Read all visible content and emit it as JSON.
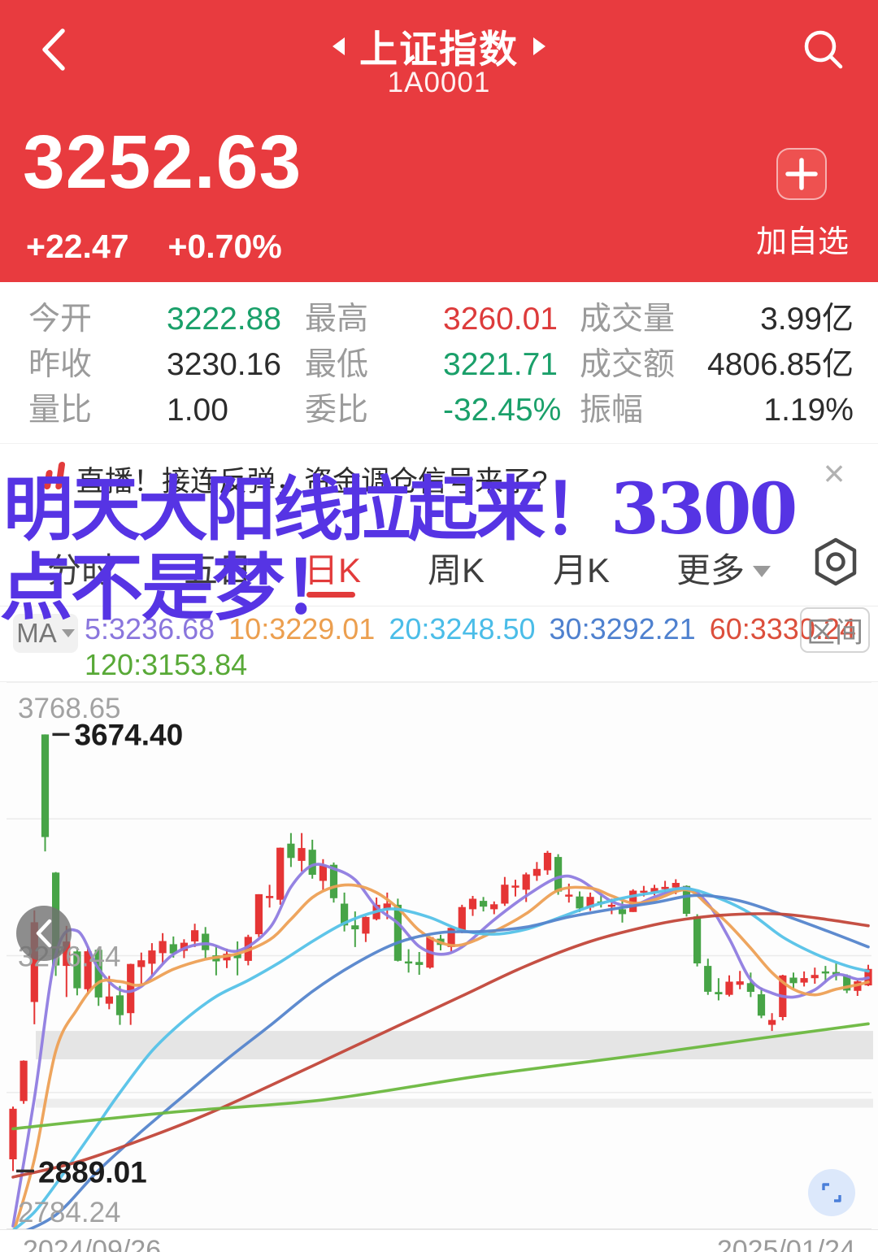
{
  "header": {
    "title": "上证指数",
    "code": "1A0001",
    "price": "3252.63",
    "change": "+22.47",
    "change_pct": "+0.70%",
    "add_watchlist_label": "加自选",
    "bg_color": "#e83b3f"
  },
  "stats": {
    "rows": [
      [
        {
          "label": "今开",
          "value": "3222.88",
          "color": "green"
        },
        {
          "label": "最高",
          "value": "3260.01",
          "color": "red"
        },
        {
          "label": "成交量",
          "value": "3.99亿",
          "color": "dark"
        }
      ],
      [
        {
          "label": "昨收",
          "value": "3230.16",
          "color": "dark"
        },
        {
          "label": "最低",
          "value": "3221.71",
          "color": "green"
        },
        {
          "label": "成交额",
          "value": "4806.85亿",
          "color": "dark"
        }
      ],
      [
        {
          "label": "量比",
          "value": "1.00",
          "color": "dark"
        },
        {
          "label": "委比",
          "value": "-32.45%",
          "color": "green"
        },
        {
          "label": "振幅",
          "value": "1.19%",
          "color": "dark"
        }
      ]
    ]
  },
  "banner": {
    "text": "直播！接连反弹，资金调仓信号来了?",
    "close_glyph": "×"
  },
  "overlay": {
    "line1": "明天大阳线拉起来！3300",
    "line2": "点不是梦！",
    "color": "#5634e4"
  },
  "tabs": {
    "items": [
      {
        "label": "分时",
        "active": false
      },
      {
        "label": "五日",
        "active": false
      },
      {
        "label": "日K",
        "active": true
      },
      {
        "label": "周K",
        "active": false
      },
      {
        "label": "月K",
        "active": false
      },
      {
        "label": "更多",
        "active": false,
        "dropdown": true
      }
    ]
  },
  "indicator": {
    "name": "MA",
    "values_line1": [
      {
        "text": "5:3236.68",
        "color": "#8a76dd"
      },
      {
        "text": "10:3229.01",
        "color": "#ec9f4f"
      },
      {
        "text": "20:3248.50",
        "color": "#4bbde8"
      },
      {
        "text": "30:3292.21",
        "color": "#4f81cf"
      },
      {
        "text": "60:3330.24",
        "color": "#dc4f3c"
      }
    ],
    "values_line2": [
      {
        "text": "120:3153.84",
        "color": "#58a937"
      }
    ],
    "range_button_label": "区间"
  },
  "icons": [
    "back-icon",
    "search-icon",
    "plus-icon",
    "live-icon",
    "close-icon",
    "chevron-down-icon",
    "kline-settings-icon",
    "chevron-left-icon",
    "expand-icon"
  ],
  "chart_data": {
    "type": "candlestick",
    "title": "上证指数 日K",
    "x_axis": {
      "start_label": "2024/09/26",
      "end_label": "2025/01/24"
    },
    "y_axis": {
      "max": 3768.65,
      "min": 2784.24,
      "labels": [
        "3768.65",
        "3276.44",
        "2784.24"
      ],
      "gridline_values": [
        3768.65,
        3522.55,
        3276.44,
        3030.34,
        2784.24
      ]
    },
    "markers": {
      "high": {
        "label": "3674.40",
        "value": 3674.4,
        "index": 3
      },
      "low": {
        "label": "2889.01",
        "value": 2889.01,
        "index": 0
      }
    },
    "zones": [
      {
        "from": 3141,
        "to": 3090
      },
      {
        "from": 3019,
        "to": 3003
      }
    ],
    "colors": {
      "up": "#e53535",
      "down": "#47a447"
    },
    "candles": [
      [
        2910,
        3005,
        2889.01,
        3000.95
      ],
      [
        3015,
        3088,
        3010,
        3087.53
      ],
      [
        3193,
        3358,
        3153,
        3336.5
      ],
      [
        3674.4,
        3674.4,
        3464,
        3489.78
      ],
      [
        3426,
        3427,
        3240,
        3258.86
      ],
      [
        3258,
        3330,
        3202,
        3301.93
      ],
      [
        3284,
        3292,
        3205,
        3217.74
      ],
      [
        3216,
        3293,
        3207,
        3284.32
      ],
      [
        3287,
        3288,
        3186,
        3201.29
      ],
      [
        3190,
        3240,
        3180,
        3202.95
      ],
      [
        3205,
        3222,
        3152,
        3169.38
      ],
      [
        3173,
        3262,
        3152,
        3261.56
      ],
      [
        3256,
        3282,
        3226,
        3268.11
      ],
      [
        3262,
        3299,
        3240,
        3285.87
      ],
      [
        3281,
        3317,
        3261,
        3302.8
      ],
      [
        3297,
        3311,
        3273,
        3280.26
      ],
      [
        3285,
        3306,
        3272,
        3299.7
      ],
      [
        3302,
        3334,
        3292,
        3322.2
      ],
      [
        3316,
        3328,
        3272,
        3286.41
      ],
      [
        3277,
        3296,
        3241,
        3266.24
      ],
      [
        3268,
        3289,
        3254,
        3279.82
      ],
      [
        3280,
        3302,
        3241,
        3272.01
      ],
      [
        3267,
        3314,
        3259,
        3310.21
      ],
      [
        3315,
        3387,
        3310,
        3386.99
      ],
      [
        3380,
        3404,
        3363,
        3383.81
      ],
      [
        3377,
        3471,
        3368,
        3470.66
      ],
      [
        3478,
        3497,
        3436,
        3452.3
      ],
      [
        3447,
        3497,
        3428,
        3470.07
      ],
      [
        3467,
        3485,
        3415,
        3421.97
      ],
      [
        3411,
        3450,
        3394,
        3439.28
      ],
      [
        3440,
        3444,
        3372,
        3379.84
      ],
      [
        3370,
        3390,
        3320,
        3330.73
      ],
      [
        3331,
        3356,
        3292,
        3323.85
      ],
      [
        3316,
        3347,
        3301,
        3346.01
      ],
      [
        3342,
        3381,
        3340,
        3367.99
      ],
      [
        3360,
        3390,
        3342,
        3370.4
      ],
      [
        3368,
        3379,
        3266,
        3267.19
      ],
      [
        3266,
        3288,
        3246,
        3263.76
      ],
      [
        3265,
        3283,
        3242,
        3259.76
      ],
      [
        3255,
        3311,
        3253,
        3309.78
      ],
      [
        3307,
        3314,
        3286,
        3295.7
      ],
      [
        3292,
        3327,
        3284,
        3326.46
      ],
      [
        3322,
        3368,
        3317,
        3363.98
      ],
      [
        3360,
        3384,
        3348,
        3378.81
      ],
      [
        3375,
        3382,
        3356,
        3364.65
      ],
      [
        3360,
        3374,
        3351,
        3368.86
      ],
      [
        3370,
        3418,
        3366,
        3404.08
      ],
      [
        3400,
        3413,
        3383,
        3402.53
      ],
      [
        3395,
        3426,
        3373,
        3422.66
      ],
      [
        3420,
        3445,
        3411,
        3432.49
      ],
      [
        3430,
        3465,
        3422,
        3461.5
      ],
      [
        3454,
        3459,
        3386,
        3391.88
      ],
      [
        3385,
        3406,
        3372,
        3386.33
      ],
      [
        3383,
        3392,
        3355,
        3361.49
      ],
      [
        3363,
        3390,
        3357,
        3382.21
      ],
      [
        3374,
        3387,
        3363,
        3370.03
      ],
      [
        3365,
        3379,
        3351,
        3368.07
      ],
      [
        3360,
        3376,
        3336,
        3351.26
      ],
      [
        3355,
        3396,
        3355,
        3393.53
      ],
      [
        3391,
        3402,
        3383,
        3393.36
      ],
      [
        3391,
        3404,
        3385,
        3398.08
      ],
      [
        3396,
        3411,
        3390,
        3400.14
      ],
      [
        3399,
        3414,
        3387,
        3407.33
      ],
      [
        3402,
        3403,
        3347,
        3351.76
      ],
      [
        3347,
        3351,
        3257,
        3262.56
      ],
      [
        3258,
        3271,
        3206,
        3211.43
      ],
      [
        3211,
        3236,
        3196,
        3206.92
      ],
      [
        3206,
        3241,
        3203,
        3229.64
      ],
      [
        3224,
        3249,
        3216,
        3230.17
      ],
      [
        3227,
        3246,
        3202,
        3211.39
      ],
      [
        3207,
        3219,
        3164,
        3168.52
      ],
      [
        3152,
        3173,
        3141,
        3160.76
      ],
      [
        3166,
        3242,
        3160,
        3240.94
      ],
      [
        3237,
        3246,
        3217,
        3227.12
      ],
      [
        3228,
        3248,
        3221,
        3236.03
      ],
      [
        3236,
        3255,
        3226,
        3241.82
      ],
      [
        3248,
        3258,
        3229,
        3244.38
      ],
      [
        3247,
        3263,
        3232,
        3242.62
      ],
      [
        3241,
        3243,
        3209,
        3213.62
      ],
      [
        3213,
        3232,
        3204,
        3230.16
      ],
      [
        3222.88,
        3260.01,
        3221.71,
        3252.63
      ]
    ],
    "ma_series": [
      {
        "name": "MA5",
        "color": "#8f7ce0",
        "points": [
          [
            0,
            2790
          ],
          [
            2,
            3020
          ],
          [
            4,
            3278
          ],
          [
            6,
            3321
          ],
          [
            8,
            3253
          ],
          [
            10,
            3215
          ],
          [
            12,
            3221
          ],
          [
            15,
            3279
          ],
          [
            18,
            3298
          ],
          [
            21,
            3285
          ],
          [
            24,
            3326
          ],
          [
            26,
            3400
          ],
          [
            28,
            3439
          ],
          [
            30,
            3433
          ],
          [
            32,
            3413
          ],
          [
            34,
            3364
          ],
          [
            36,
            3335
          ],
          [
            38,
            3293
          ],
          [
            40,
            3279
          ],
          [
            42,
            3292
          ],
          [
            45,
            3341
          ],
          [
            48,
            3384
          ],
          [
            51,
            3417
          ],
          [
            53,
            3413
          ],
          [
            56,
            3374
          ],
          [
            58,
            3367
          ],
          [
            60,
            3382
          ],
          [
            63,
            3398
          ],
          [
            65,
            3370
          ],
          [
            67,
            3307
          ],
          [
            69,
            3233
          ],
          [
            71,
            3209
          ],
          [
            73,
            3202
          ],
          [
            75,
            3215
          ],
          [
            77,
            3242
          ],
          [
            79,
            3234
          ],
          [
            80,
            3236.68
          ]
        ]
      },
      {
        "name": "MA10",
        "color": "#eda055",
        "points": [
          [
            0,
            2775
          ],
          [
            2,
            2910
          ],
          [
            4,
            3105
          ],
          [
            6,
            3180
          ],
          [
            8,
            3228
          ],
          [
            10,
            3230
          ],
          [
            12,
            3224
          ],
          [
            15,
            3252
          ],
          [
            18,
            3270
          ],
          [
            21,
            3280
          ],
          [
            24,
            3305
          ],
          [
            26,
            3342
          ],
          [
            28,
            3381
          ],
          [
            30,
            3400
          ],
          [
            32,
            3403
          ],
          [
            34,
            3390
          ],
          [
            36,
            3362
          ],
          [
            38,
            3322
          ],
          [
            40,
            3300
          ],
          [
            42,
            3296
          ],
          [
            45,
            3320
          ],
          [
            48,
            3352
          ],
          [
            51,
            3394
          ],
          [
            54,
            3398
          ],
          [
            56,
            3384
          ],
          [
            58,
            3371
          ],
          [
            60,
            3377
          ],
          [
            63,
            3395
          ],
          [
            65,
            3367
          ],
          [
            67,
            3332
          ],
          [
            69,
            3290
          ],
          [
            71,
            3246
          ],
          [
            73,
            3216
          ],
          [
            75,
            3206
          ],
          [
            77,
            3216
          ],
          [
            79,
            3224
          ],
          [
            80,
            3229.01
          ]
        ]
      },
      {
        "name": "MA20",
        "color": "#55c2e8",
        "points": [
          [
            0,
            2782
          ],
          [
            2,
            2815
          ],
          [
            4,
            2865
          ],
          [
            6,
            2920
          ],
          [
            8,
            2975
          ],
          [
            10,
            3030
          ],
          [
            13,
            3105
          ],
          [
            16,
            3160
          ],
          [
            19,
            3203
          ],
          [
            22,
            3232
          ],
          [
            25,
            3265
          ],
          [
            28,
            3302
          ],
          [
            31,
            3335
          ],
          [
            34,
            3356
          ],
          [
            36,
            3360
          ],
          [
            39,
            3345
          ],
          [
            42,
            3322
          ],
          [
            45,
            3315
          ],
          [
            48,
            3324
          ],
          [
            51,
            3344
          ],
          [
            54,
            3365
          ],
          [
            57,
            3380
          ],
          [
            60,
            3390
          ],
          [
            63,
            3397
          ],
          [
            66,
            3380
          ],
          [
            69,
            3352
          ],
          [
            72,
            3310
          ],
          [
            75,
            3280
          ],
          [
            78,
            3258
          ],
          [
            80,
            3248.5
          ]
        ]
      },
      {
        "name": "MA30",
        "color": "#5585cc",
        "points": [
          [
            0,
            2772
          ],
          [
            4,
            2810
          ],
          [
            8,
            2890
          ],
          [
            12,
            2960
          ],
          [
            16,
            3025
          ],
          [
            20,
            3090
          ],
          [
            24,
            3150
          ],
          [
            28,
            3212
          ],
          [
            32,
            3262
          ],
          [
            36,
            3300
          ],
          [
            40,
            3318
          ],
          [
            44,
            3320
          ],
          [
            48,
            3328
          ],
          [
            52,
            3346
          ],
          [
            56,
            3360
          ],
          [
            60,
            3372
          ],
          [
            64,
            3385
          ],
          [
            68,
            3375
          ],
          [
            72,
            3350
          ],
          [
            76,
            3322
          ],
          [
            80,
            3292.21
          ]
        ]
      },
      {
        "name": "MA60",
        "color": "#c2473a",
        "points": [
          [
            0,
            2878
          ],
          [
            6,
            2905
          ],
          [
            12,
            2945
          ],
          [
            18,
            2990
          ],
          [
            24,
            3042
          ],
          [
            30,
            3096
          ],
          [
            36,
            3150
          ],
          [
            42,
            3204
          ],
          [
            48,
            3258
          ],
          [
            54,
            3302
          ],
          [
            60,
            3332
          ],
          [
            64,
            3345
          ],
          [
            68,
            3351
          ],
          [
            72,
            3351
          ],
          [
            76,
            3342
          ],
          [
            80,
            3330.24
          ]
        ]
      },
      {
        "name": "MA120",
        "color": "#6cb83f",
        "points": [
          [
            0,
            2965
          ],
          [
            15,
            2995
          ],
          [
            29,
            3017
          ],
          [
            44,
            3061
          ],
          [
            60,
            3101
          ],
          [
            70,
            3128
          ],
          [
            80,
            3153.84
          ]
        ]
      }
    ]
  }
}
